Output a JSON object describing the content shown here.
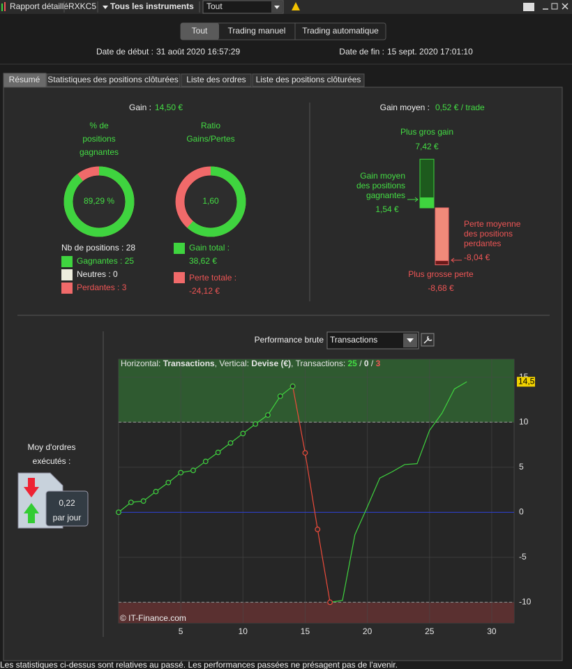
{
  "toolbar": {
    "title": "Rapport détaillé",
    "account": "RXKC5",
    "instruments": "Tous les instruments",
    "filter": "Tout"
  },
  "mode_buttons": [
    "Tout",
    "Trading manuel",
    "Trading automatique"
  ],
  "dates": {
    "start_label": "Date de début :",
    "start": "31 août 2020 16:57:29",
    "end_label": "Date de fin :",
    "end": "15 sept. 2020 17:01:10"
  },
  "tabs": [
    "Résumé",
    "Statistiques des positions clôturées",
    "Liste des ordres",
    "Liste des positions clôturées"
  ],
  "gain": {
    "label": "Gain :",
    "value": "14,50 €"
  },
  "win_rate": {
    "title": [
      "% de",
      "positions",
      "gagnantes"
    ],
    "value": 89.29,
    "label": "89,29 %",
    "colors": [
      "#3fd43f",
      "#f06a6a"
    ]
  },
  "ratio": {
    "title": [
      "Ratio",
      "Gains/Pertes"
    ],
    "value": "1,60"
  },
  "positions": {
    "total_label": "Nb de positions :",
    "total": 28,
    "winning_label": "Gagnantes :",
    "winning": 25,
    "neutral_label": "Neutres :",
    "neutral": 0,
    "losing_label": "Perdantes :",
    "losing": 3
  },
  "totals": {
    "gain_label": "Gain total :",
    "gain": {
      "value": 38.62,
      "label": "38,62 €"
    },
    "loss_label": "Perte totale :",
    "loss": {
      "value": -24.12,
      "label": "-24,12 €"
    }
  },
  "gain_moyen": {
    "label": "Gain moyen :",
    "value": "0,52 € / trade",
    "max_gain": {
      "title": "Plus gros gain",
      "value": 7.42,
      "label": "7,42 €"
    },
    "avg_gain": {
      "title": [
        "Gain moyen",
        "des positions",
        "gagnantes"
      ],
      "value": 1.54,
      "label": "1,54 €"
    },
    "avg_loss": {
      "title": [
        "Perte moyenne",
        "des positions",
        "perdantes"
      ],
      "value": -8.04,
      "label": "-8,04 €"
    },
    "max_loss": {
      "title": "Plus grosse perte",
      "value": -8.68,
      "label": "-8,68 €"
    }
  },
  "orders": {
    "title": [
      "Moy d'ordres",
      "exécutés :"
    ],
    "value": "0,22",
    "unit": "par jour"
  },
  "performance": {
    "title": "Performance brute",
    "selector": "Transactions"
  },
  "chart_data": {
    "type": "line",
    "header": [
      "Horizontal: ",
      "Transactions",
      ", Vertical: ",
      "Devise (€)",
      ", Transactions: ",
      "25",
      " / ",
      "0",
      " / ",
      "3"
    ],
    "x": [
      0,
      1,
      2,
      3,
      4,
      5,
      6,
      7,
      8,
      9,
      10,
      11,
      12,
      13,
      14,
      15,
      16,
      17,
      18,
      19,
      20,
      21,
      22,
      23,
      24,
      25,
      26,
      27,
      28
    ],
    "xlim": [
      0,
      31.8
    ],
    "xticks": [
      5,
      10,
      15,
      20,
      25,
      30
    ],
    "ylim": [
      -12.3,
      17
    ],
    "yticks": [
      -10,
      -5,
      0,
      5,
      10,
      15
    ],
    "series": [
      {
        "color": "#ee4b3b",
        "markers": true,
        "values": [
          null,
          null,
          null,
          null,
          null,
          null,
          null,
          null,
          null,
          null,
          null,
          null,
          null,
          null,
          14.0,
          6.6,
          -1.9,
          -10.0,
          null,
          null,
          null,
          null,
          null,
          null,
          null,
          null,
          null,
          null,
          null
        ]
      },
      {
        "color": "#3fd43f",
        "markers": true,
        "values": [
          0,
          1.1,
          1.25,
          2.3,
          3.3,
          4.4,
          4.65,
          5.65,
          6.65,
          7.7,
          8.75,
          9.8,
          10.8,
          12.9,
          14.0,
          null,
          null,
          null,
          null,
          null,
          null,
          null,
          null,
          null,
          null,
          null,
          null,
          null,
          null
        ]
      },
      {
        "color": "#3fd43f",
        "markers": false,
        "values": [
          null,
          null,
          null,
          null,
          null,
          null,
          null,
          null,
          null,
          null,
          null,
          null,
          null,
          null,
          null,
          null,
          null,
          -10.0,
          -9.8,
          -2.5,
          0.6,
          3.8,
          4.5,
          5.3,
          5.4,
          9.1,
          11.0,
          13.7,
          14.5
        ]
      }
    ],
    "last_value": {
      "value": 14.5,
      "label": "14,5"
    },
    "zones": [
      {
        "above": 10,
        "color": "#2f5a30"
      },
      {
        "below": -10,
        "color": "#5a3030"
      }
    ],
    "zero_line_color": "#2b3fd6",
    "grid": true,
    "watermark": "© IT-Finance.com"
  },
  "footer": "Les statistiques ci-dessus sont relatives au passé. Les performances passées ne présagent pas de l'avenir."
}
